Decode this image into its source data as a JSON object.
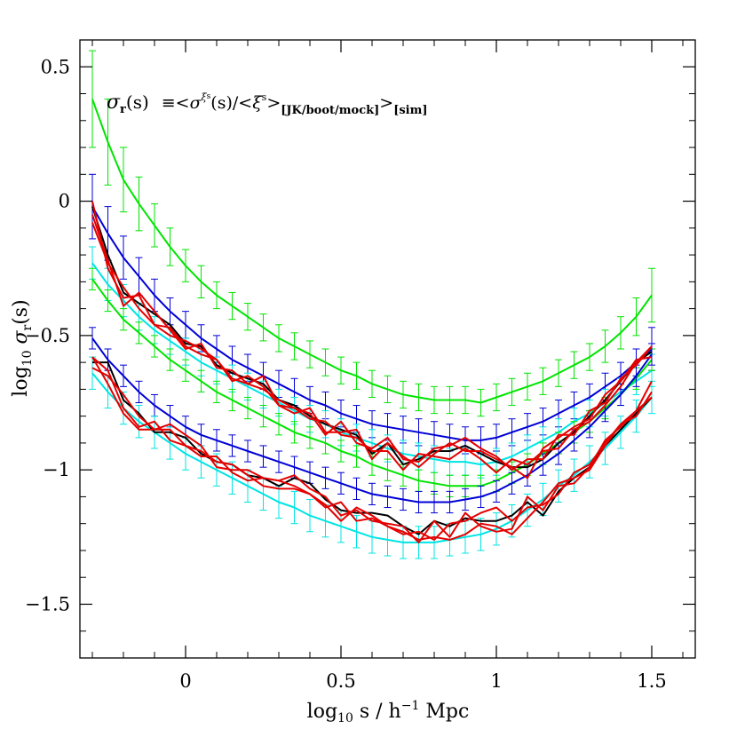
{
  "chart_data": {
    "type": "line",
    "title": "",
    "annotation": {
      "sigma": "σ",
      "sub_r": "r",
      "arg": "(s)",
      "eq": "≡<",
      "sigma2": "σ",
      "sup_xi": "ξ",
      "sup_s": "s",
      "arg2": "(s)/<",
      "xi": "ξ",
      "xi_sup": "s",
      "close1": ">",
      "sub1": "[JK/boot/mock]",
      "close2": ">",
      "sub2": "[sim]"
    },
    "xlabel": {
      "pre": "log",
      "sub": "10",
      "mid": " s / h",
      "sup": "−1",
      "post": " Mpc"
    },
    "ylabel": {
      "pre": "log",
      "sub": "10",
      "sigma": " σ",
      "sub2": "r",
      "post": "(s)"
    },
    "xlim": [
      -0.34,
      1.64
    ],
    "ylim": [
      -1.7,
      0.6
    ],
    "x_ticks": [
      {
        "v": 0,
        "label": "0"
      },
      {
        "v": 0.5,
        "label": "0.5"
      },
      {
        "v": 1,
        "label": "1"
      },
      {
        "v": 1.5,
        "label": "1.5"
      }
    ],
    "y_ticks": [
      {
        "v": 0.5,
        "label": "0.5"
      },
      {
        "v": 0,
        "label": "0"
      },
      {
        "v": -0.5,
        "label": "−0.5"
      },
      {
        "v": -1,
        "label": "−1"
      },
      {
        "v": -1.5,
        "label": "−1.5"
      }
    ],
    "colors": {
      "green": "#00e400",
      "blue": "#0000d6",
      "cyan": "#00e4e4",
      "black": "#000000",
      "red": "#e40000"
    },
    "x": [
      -0.3,
      -0.25,
      -0.2,
      -0.15,
      -0.1,
      -0.05,
      0.0,
      0.05,
      0.1,
      0.15,
      0.2,
      0.25,
      0.3,
      0.35,
      0.4,
      0.45,
      0.5,
      0.55,
      0.6,
      0.65,
      0.7,
      0.75,
      0.8,
      0.85,
      0.9,
      0.95,
      1.0,
      1.05,
      1.1,
      1.15,
      1.2,
      1.25,
      1.3,
      1.35,
      1.4,
      1.45,
      1.5
    ],
    "series": [
      {
        "name": "green-high",
        "color": "green",
        "err": [
          0.18,
          0.16,
          0.12,
          0.1,
          0.08,
          0.07,
          0.06,
          0.06,
          0.05,
          0.05,
          0.05,
          0.05,
          0.05,
          0.05,
          0.05,
          0.05,
          0.05,
          0.05,
          0.05,
          0.05,
          0.05,
          0.05,
          0.05,
          0.05,
          0.05,
          0.05,
          0.05,
          0.05,
          0.05,
          0.05,
          0.05,
          0.05,
          0.05,
          0.06,
          0.06,
          0.07,
          0.1
        ],
        "values": [
          0.38,
          0.22,
          0.08,
          -0.01,
          -0.09,
          -0.17,
          -0.24,
          -0.3,
          -0.35,
          -0.39,
          -0.43,
          -0.47,
          -0.51,
          -0.54,
          -0.57,
          -0.6,
          -0.63,
          -0.65,
          -0.68,
          -0.7,
          -0.72,
          -0.73,
          -0.74,
          -0.74,
          -0.74,
          -0.75,
          -0.73,
          -0.71,
          -0.69,
          -0.67,
          -0.64,
          -0.61,
          -0.58,
          -0.54,
          -0.49,
          -0.43,
          -0.35
        ]
      },
      {
        "name": "blue-high",
        "color": "blue",
        "err": [
          0.12,
          0.1,
          0.08,
          0.07,
          0.06,
          0.05,
          0.05,
          0.05,
          0.05,
          0.05,
          0.05,
          0.05,
          0.05,
          0.05,
          0.05,
          0.05,
          0.05,
          0.05,
          0.05,
          0.05,
          0.05,
          0.05,
          0.05,
          0.05,
          0.05,
          0.05,
          0.05,
          0.05,
          0.05,
          0.05,
          0.05,
          0.05,
          0.05,
          0.05,
          0.05,
          0.05,
          0.08
        ],
        "values": [
          -0.02,
          -0.12,
          -0.21,
          -0.28,
          -0.35,
          -0.41,
          -0.46,
          -0.51,
          -0.55,
          -0.59,
          -0.62,
          -0.65,
          -0.68,
          -0.71,
          -0.74,
          -0.76,
          -0.79,
          -0.81,
          -0.83,
          -0.84,
          -0.85,
          -0.86,
          -0.87,
          -0.88,
          -0.89,
          -0.89,
          -0.88,
          -0.86,
          -0.84,
          -0.82,
          -0.79,
          -0.76,
          -0.73,
          -0.69,
          -0.65,
          -0.6,
          -0.55
        ]
      },
      {
        "name": "cyan-high",
        "color": "cyan",
        "err": [
          0.06,
          0.06,
          0.06,
          0.05,
          0.05,
          0.05,
          0.05,
          0.05,
          0.05,
          0.05,
          0.05,
          0.05,
          0.05,
          0.05,
          0.05,
          0.05,
          0.05,
          0.05,
          0.05,
          0.05,
          0.05,
          0.05,
          0.05,
          0.05,
          0.05,
          0.05,
          0.05,
          0.05,
          0.05,
          0.05,
          0.05,
          0.05,
          0.05,
          0.05,
          0.05,
          0.05,
          0.06
        ],
        "values": [
          -0.23,
          -0.31,
          -0.37,
          -0.43,
          -0.48,
          -0.52,
          -0.56,
          -0.6,
          -0.63,
          -0.66,
          -0.69,
          -0.72,
          -0.75,
          -0.78,
          -0.81,
          -0.83,
          -0.86,
          -0.88,
          -0.9,
          -0.92,
          -0.94,
          -0.95,
          -0.96,
          -0.97,
          -0.97,
          -0.98,
          -0.97,
          -0.95,
          -0.92,
          -0.89,
          -0.86,
          -0.82,
          -0.79,
          -0.75,
          -0.71,
          -0.67,
          -0.63
        ]
      },
      {
        "name": "green-low",
        "color": "green",
        "err": [
          0.04,
          0.04,
          0.04,
          0.04,
          0.04,
          0.04,
          0.04,
          0.04,
          0.04,
          0.04,
          0.04,
          0.04,
          0.04,
          0.04,
          0.04,
          0.04,
          0.04,
          0.04,
          0.04,
          0.04,
          0.04,
          0.04,
          0.04,
          0.04,
          0.04,
          0.04,
          0.04,
          0.04,
          0.04,
          0.04,
          0.04,
          0.04,
          0.04,
          0.04,
          0.04,
          0.04,
          0.04
        ],
        "values": [
          -0.29,
          -0.37,
          -0.44,
          -0.49,
          -0.54,
          -0.59,
          -0.63,
          -0.67,
          -0.71,
          -0.74,
          -0.77,
          -0.8,
          -0.83,
          -0.86,
          -0.88,
          -0.9,
          -0.93,
          -0.95,
          -0.98,
          -1.0,
          -1.02,
          -1.04,
          -1.05,
          -1.06,
          -1.06,
          -1.06,
          -1.04,
          -1.01,
          -0.98,
          -0.94,
          -0.9,
          -0.86,
          -0.82,
          -0.77,
          -0.72,
          -0.66,
          -0.59
        ]
      },
      {
        "name": "blue-low",
        "color": "blue",
        "err": [
          0.04,
          0.04,
          0.04,
          0.04,
          0.04,
          0.04,
          0.04,
          0.04,
          0.04,
          0.04,
          0.04,
          0.04,
          0.04,
          0.04,
          0.04,
          0.04,
          0.04,
          0.04,
          0.04,
          0.04,
          0.04,
          0.04,
          0.04,
          0.04,
          0.04,
          0.04,
          0.04,
          0.04,
          0.04,
          0.04,
          0.04,
          0.04,
          0.04,
          0.04,
          0.04,
          0.04,
          0.04
        ],
        "values": [
          -0.51,
          -0.59,
          -0.65,
          -0.71,
          -0.76,
          -0.8,
          -0.84,
          -0.87,
          -0.89,
          -0.91,
          -0.93,
          -0.95,
          -0.97,
          -0.99,
          -1.01,
          -1.03,
          -1.05,
          -1.07,
          -1.09,
          -1.1,
          -1.11,
          -1.12,
          -1.12,
          -1.12,
          -1.11,
          -1.1,
          -1.08,
          -1.05,
          -1.02,
          -0.98,
          -0.94,
          -0.89,
          -0.84,
          -0.78,
          -0.72,
          -0.65,
          -0.57
        ]
      },
      {
        "name": "cyan-low",
        "color": "cyan",
        "err": [
          0.06,
          0.06,
          0.06,
          0.06,
          0.06,
          0.06,
          0.06,
          0.06,
          0.06,
          0.06,
          0.06,
          0.06,
          0.06,
          0.06,
          0.06,
          0.06,
          0.06,
          0.06,
          0.06,
          0.06,
          0.06,
          0.06,
          0.06,
          0.06,
          0.06,
          0.06,
          0.06,
          0.06,
          0.06,
          0.06,
          0.06,
          0.06,
          0.06,
          0.06,
          0.06,
          0.06,
          0.06
        ],
        "values": [
          -0.64,
          -0.71,
          -0.77,
          -0.82,
          -0.86,
          -0.9,
          -0.94,
          -0.97,
          -1.0,
          -1.03,
          -1.06,
          -1.09,
          -1.12,
          -1.14,
          -1.17,
          -1.19,
          -1.21,
          -1.23,
          -1.25,
          -1.26,
          -1.27,
          -1.27,
          -1.27,
          -1.26,
          -1.25,
          -1.24,
          -1.22,
          -1.19,
          -1.15,
          -1.11,
          -1.06,
          -1.02,
          -0.97,
          -0.92,
          -0.86,
          -0.8,
          -0.73
        ]
      },
      {
        "name": "black-high",
        "color": "black",
        "err": null,
        "values": [
          -0.02,
          -0.2,
          -0.34,
          -0.38,
          -0.42,
          -0.46,
          -0.53,
          -0.54,
          -0.61,
          -0.64,
          -0.66,
          -0.68,
          -0.74,
          -0.76,
          -0.8,
          -0.83,
          -0.85,
          -0.87,
          -0.94,
          -0.9,
          -0.98,
          -0.96,
          -0.93,
          -0.93,
          -0.91,
          -0.94,
          -0.97,
          -0.99,
          -0.99,
          -0.96,
          -0.9,
          -0.86,
          -0.8,
          -0.74,
          -0.67,
          -0.6,
          -0.56
        ]
      },
      {
        "name": "red-high-1",
        "color": "red",
        "err": null,
        "values": [
          0.0,
          -0.25,
          -0.36,
          -0.35,
          -0.46,
          -0.5,
          -0.52,
          -0.55,
          -0.59,
          -0.67,
          -0.65,
          -0.69,
          -0.76,
          -0.77,
          -0.79,
          -0.87,
          -0.82,
          -0.9,
          -0.92,
          -0.88,
          -0.96,
          -0.97,
          -0.92,
          -0.91,
          -0.88,
          -0.92,
          -0.95,
          -1.0,
          -0.96,
          -0.96,
          -0.87,
          -0.87,
          -0.78,
          -0.75,
          -0.66,
          -0.61,
          -0.54
        ]
      },
      {
        "name": "red-high-2",
        "color": "red",
        "err": null,
        "values": [
          -0.05,
          -0.22,
          -0.39,
          -0.34,
          -0.41,
          -0.48,
          -0.55,
          -0.53,
          -0.62,
          -0.63,
          -0.68,
          -0.65,
          -0.76,
          -0.79,
          -0.77,
          -0.86,
          -0.86,
          -0.85,
          -0.96,
          -0.9,
          -0.95,
          -0.99,
          -0.94,
          -0.9,
          -0.93,
          -0.93,
          -0.96,
          -0.99,
          -1.03,
          -0.92,
          -0.88,
          -0.84,
          -0.81,
          -0.72,
          -0.67,
          -0.59,
          -0.58
        ]
      },
      {
        "name": "red-high-3",
        "color": "red",
        "err": null,
        "values": [
          -0.08,
          -0.23,
          -0.32,
          -0.4,
          -0.46,
          -0.47,
          -0.54,
          -0.57,
          -0.59,
          -0.66,
          -0.68,
          -0.7,
          -0.74,
          -0.77,
          -0.81,
          -0.82,
          -0.87,
          -0.88,
          -0.93,
          -0.93,
          -1.0,
          -0.94,
          -0.95,
          -0.96,
          -0.92,
          -0.96,
          -1.01,
          -0.96,
          -0.98,
          -0.93,
          -0.92,
          -0.85,
          -0.82,
          -0.76,
          -0.69,
          -0.6,
          -0.54
        ]
      },
      {
        "name": "black-low",
        "color": "black",
        "err": null,
        "values": [
          -0.6,
          -0.6,
          -0.74,
          -0.79,
          -0.86,
          -0.86,
          -0.88,
          -0.94,
          -0.97,
          -0.98,
          -1.02,
          -1.03,
          -1.06,
          -1.03,
          -1.05,
          -1.11,
          -1.15,
          -1.16,
          -1.16,
          -1.17,
          -1.21,
          -1.24,
          -1.19,
          -1.21,
          -1.18,
          -1.19,
          -1.19,
          -1.17,
          -1.12,
          -1.17,
          -1.08,
          -1.03,
          -0.99,
          -0.91,
          -0.85,
          -0.79,
          -0.73
        ]
      },
      {
        "name": "red-low-1",
        "color": "red",
        "err": null,
        "values": [
          -0.58,
          -0.63,
          -0.77,
          -0.84,
          -0.82,
          -0.89,
          -0.91,
          -0.95,
          -0.95,
          -1.01,
          -1.04,
          -1.03,
          -1.04,
          -1.02,
          -1.07,
          -1.1,
          -1.17,
          -1.15,
          -1.19,
          -1.2,
          -1.21,
          -1.27,
          -1.19,
          -1.25,
          -1.16,
          -1.21,
          -1.23,
          -1.22,
          -1.1,
          -1.15,
          -1.06,
          -1.05,
          -0.99,
          -0.89,
          -0.84,
          -0.78,
          -0.73
        ]
      },
      {
        "name": "red-low-2",
        "color": "red",
        "err": null,
        "values": [
          -0.62,
          -0.65,
          -0.72,
          -0.8,
          -0.85,
          -0.83,
          -0.87,
          -0.91,
          -0.99,
          -1.0,
          -1.0,
          -1.03,
          -1.04,
          -1.06,
          -1.09,
          -1.14,
          -1.12,
          -1.19,
          -1.18,
          -1.21,
          -1.24,
          -1.23,
          -1.26,
          -1.2,
          -1.19,
          -1.16,
          -1.14,
          -1.19,
          -1.14,
          -1.13,
          -1.09,
          -1.01,
          -0.98,
          -0.9,
          -0.83,
          -0.8,
          -0.71
        ]
      },
      {
        "name": "red-low-3",
        "color": "red",
        "err": null,
        "values": [
          -0.58,
          -0.68,
          -0.79,
          -0.85,
          -0.85,
          -0.85,
          -0.91,
          -0.93,
          -0.97,
          -0.98,
          -1.02,
          -1.06,
          -1.07,
          -1.07,
          -1.09,
          -1.13,
          -1.19,
          -1.14,
          -1.17,
          -1.21,
          -1.23,
          -1.26,
          -1.25,
          -1.26,
          -1.24,
          -1.2,
          -1.21,
          -1.24,
          -1.18,
          -1.12,
          -1.05,
          -1.03,
          -1.0,
          -0.91,
          -0.83,
          -0.78,
          -0.67
        ]
      }
    ]
  }
}
